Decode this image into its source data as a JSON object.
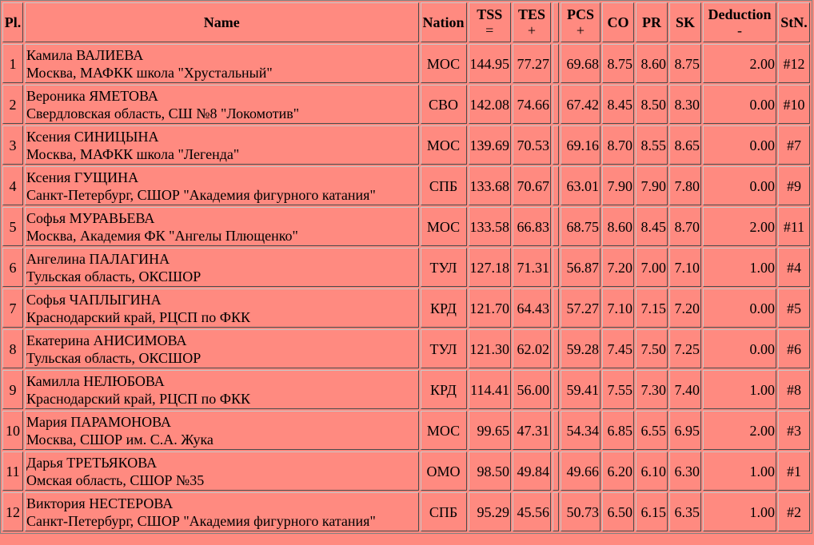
{
  "headers": {
    "pl": "Pl.",
    "name": "Name",
    "nation": "Nation",
    "tss": "TSS",
    "tss_sub": "=",
    "tes": "TES",
    "tes_sub": "+",
    "pcs": "PCS",
    "pcs_sub": "+",
    "co": "CO",
    "pr": "PR",
    "sk": "SK",
    "deduction": "Deduction",
    "deduction_sub": "-",
    "stn": "StN."
  },
  "rows": [
    {
      "pl": "1",
      "name": "Камила ВАЛИЕВА",
      "club": "Москва, МАФКК школа \"Хрустальный\"",
      "nation": "МОС",
      "tss": "144.95",
      "tes": "77.27",
      "pcs": "69.68",
      "co": "8.75",
      "pr": "8.60",
      "sk": "8.75",
      "ded": "2.00",
      "stn": "#12"
    },
    {
      "pl": "2",
      "name": "Вероника ЯМЕТОВА",
      "club": "Свердловская область, СШ №8 \"Локомотив\"",
      "nation": "СВО",
      "tss": "142.08",
      "tes": "74.66",
      "pcs": "67.42",
      "co": "8.45",
      "pr": "8.50",
      "sk": "8.30",
      "ded": "0.00",
      "stn": "#10"
    },
    {
      "pl": "3",
      "name": "Ксения СИНИЦЫНА",
      "club": "Москва, МАФКК школа \"Легенда\"",
      "nation": "МОС",
      "tss": "139.69",
      "tes": "70.53",
      "pcs": "69.16",
      "co": "8.70",
      "pr": "8.55",
      "sk": "8.65",
      "ded": "0.00",
      "stn": "#7"
    },
    {
      "pl": "4",
      "name": "Ксения ГУЩИНА",
      "club": "Санкт-Петербург, СШОР \"Академия фигурного катания\"",
      "nation": "СПБ",
      "tss": "133.68",
      "tes": "70.67",
      "pcs": "63.01",
      "co": "7.90",
      "pr": "7.90",
      "sk": "7.80",
      "ded": "0.00",
      "stn": "#9"
    },
    {
      "pl": "5",
      "name": "Софья МУРАВЬЕВА",
      "club": "Москва, Академия ФК \"Ангелы Плющенко\"",
      "nation": "МОС",
      "tss": "133.58",
      "tes": "66.83",
      "pcs": "68.75",
      "co": "8.60",
      "pr": "8.45",
      "sk": "8.70",
      "ded": "2.00",
      "stn": "#11"
    },
    {
      "pl": "6",
      "name": "Ангелина ПАЛАГИНА",
      "club": "Тульская область, ОКСШОР",
      "nation": "ТУЛ",
      "tss": "127.18",
      "tes": "71.31",
      "pcs": "56.87",
      "co": "7.20",
      "pr": "7.00",
      "sk": "7.10",
      "ded": "1.00",
      "stn": "#4"
    },
    {
      "pl": "7",
      "name": "Софья ЧАПЛЫГИНА",
      "club": "Краснодарский край, РЦСП по ФКК",
      "nation": "КРД",
      "tss": "121.70",
      "tes": "64.43",
      "pcs": "57.27",
      "co": "7.10",
      "pr": "7.15",
      "sk": "7.20",
      "ded": "0.00",
      "stn": "#5"
    },
    {
      "pl": "8",
      "name": "Екатерина АНИСИМОВА",
      "club": "Тульская область, ОКСШОР",
      "nation": "ТУЛ",
      "tss": "121.30",
      "tes": "62.02",
      "pcs": "59.28",
      "co": "7.45",
      "pr": "7.50",
      "sk": "7.25",
      "ded": "0.00",
      "stn": "#6"
    },
    {
      "pl": "9",
      "name": "Камилла НЕЛЮБОВА",
      "club": "Краснодарский край, РЦСП по ФКК",
      "nation": "КРД",
      "tss": "114.41",
      "tes": "56.00",
      "pcs": "59.41",
      "co": "7.55",
      "pr": "7.30",
      "sk": "7.40",
      "ded": "1.00",
      "stn": "#8"
    },
    {
      "pl": "10",
      "name": "Мария ПАРАМОНОВА",
      "club": "Москва, СШОР им. С.А. Жука",
      "nation": "МОС",
      "tss": "99.65",
      "tes": "47.31",
      "pcs": "54.34",
      "co": "6.85",
      "pr": "6.55",
      "sk": "6.95",
      "ded": "2.00",
      "stn": "#3"
    },
    {
      "pl": "11",
      "name": "Дарья ТРЕТЬЯКОВА",
      "club": "Омская область, СШОР №35",
      "nation": "ОМО",
      "tss": "98.50",
      "tes": "49.84",
      "pcs": "49.66",
      "co": "6.20",
      "pr": "6.10",
      "sk": "6.30",
      "ded": "1.00",
      "stn": "#1"
    },
    {
      "pl": "12",
      "name": "Виктория НЕСТЕРОВА",
      "club": "Санкт-Петербург, СШОР \"Академия фигурного катания\"",
      "nation": "СПБ",
      "tss": "95.29",
      "tes": "45.56",
      "pcs": "50.73",
      "co": "6.50",
      "pr": "6.15",
      "sk": "6.35",
      "ded": "1.00",
      "stn": "#2"
    }
  ],
  "colors": {
    "background": "#ff8a80",
    "border": "#808080"
  }
}
